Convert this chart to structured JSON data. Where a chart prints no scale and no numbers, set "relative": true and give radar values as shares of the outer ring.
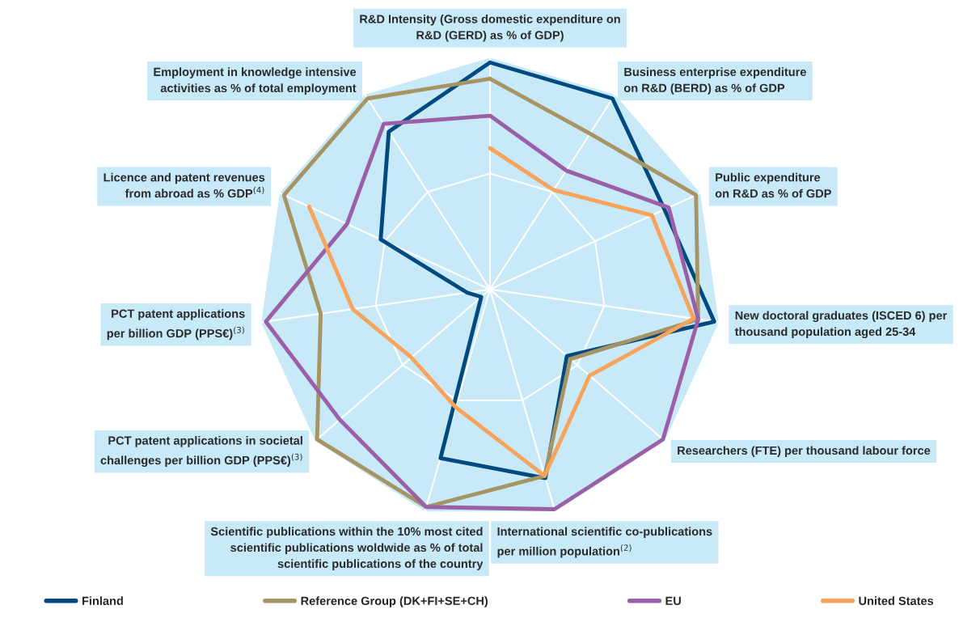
{
  "chart_data": {
    "type": "radar",
    "relative": true,
    "grid": true,
    "legend": "bottom",
    "categories": [
      "R&D Intensity (Gross domestic expenditure on\nR&D (GERD) as % of GDP)",
      "Business enterprise expenditure\non R&D (BERD) as % of GDP",
      "Public expenditure\non R&D as % of GDP",
      "New doctoral graduates (ISCED 6) per\nthousand population aged 25-34",
      "Researchers (FTE) per thousand labour force",
      "International scientific co-publications\nper million population$^{(2)}$",
      "Scientific publications within the 10% most cited\nscientific publications woldwide as % of total\nscientific publications of the country",
      "PCT patent applications in societal\nchallenges per billion GDP (PPS€)$^{(3)}$",
      "PCT patent applications\nper billion GDP (PPS€)$^{(3)}$",
      "Licence and patent revenues\nfrom abroad as % GDP$^{(4)}$",
      "Employment in knowledge intensive\nactivities as % of total employment"
    ],
    "series": [
      {
        "name": "Finland",
        "color": "#004a80",
        "values": [
          0.98,
          0.98,
          0.83,
          0.98,
          0.44,
          0.85,
          0.76,
          0.05,
          0.1,
          0.52,
          0.81
        ]
      },
      {
        "name": "Reference Group (DK+FI+SE+CH)",
        "color": "#a69464",
        "values": [
          0.91,
          0.8,
          0.98,
          0.91,
          0.46,
          0.84,
          0.98,
          0.99,
          0.74,
          0.98,
          0.98
        ]
      },
      {
        "name": "EU",
        "color": "#9b5fa8",
        "values": [
          0.75,
          0.61,
          0.85,
          0.91,
          0.99,
          0.99,
          0.98,
          0.86,
          0.98,
          0.68,
          0.85
        ]
      },
      {
        "name": "United States",
        "color": "#f7a35c",
        "values": [
          0.61,
          0.51,
          0.77,
          0.89,
          0.57,
          0.84,
          0.53,
          0.45,
          0.6,
          0.86,
          null
        ]
      }
    ]
  }
}
